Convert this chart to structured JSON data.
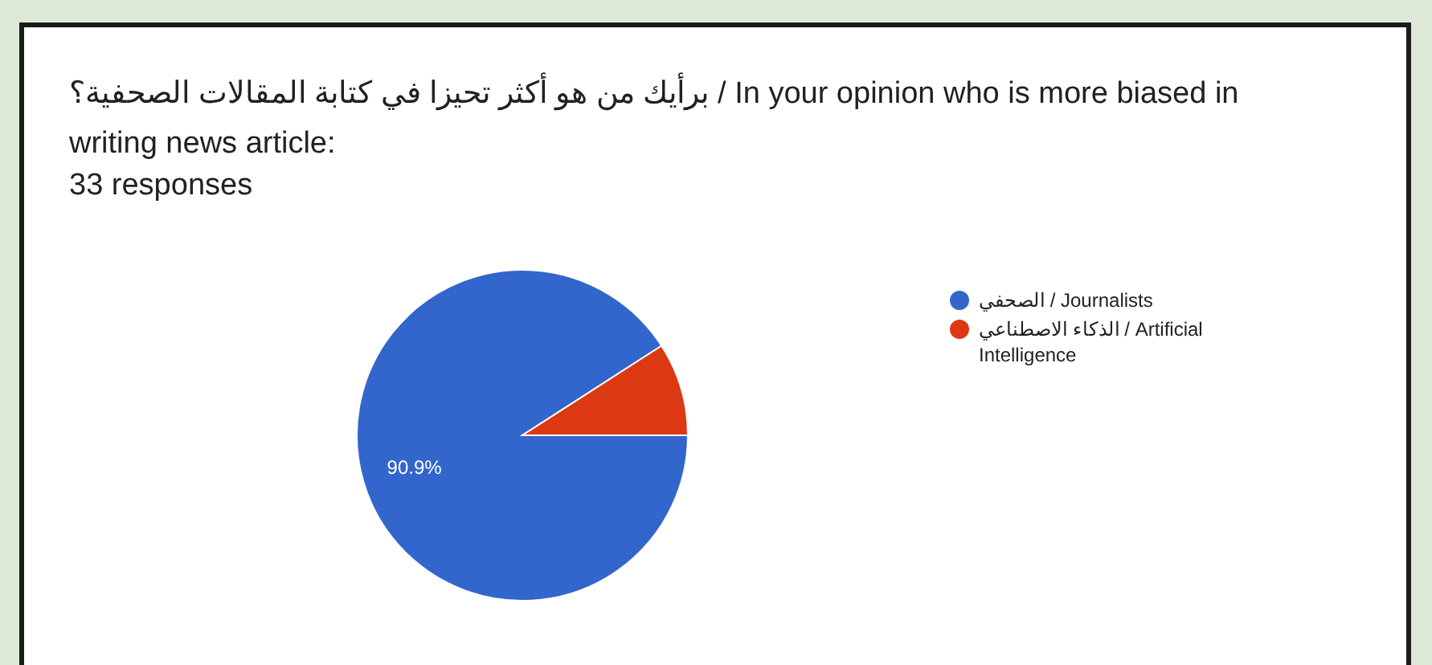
{
  "chart_data": {
    "type": "pie",
    "title": "برأيك من هو أكثر تحيزا في كتابة المقالات الصحفية؟ / In your opinion who is more biased in writing news article:",
    "subtitle": "33 responses",
    "categories": [
      "الصحفي / Journalists",
      "الذكاء الاصطناعي / Artificial Intelligence"
    ],
    "values": [
      90.9,
      9.1
    ],
    "colors": [
      "#3366cc",
      "#dc3912"
    ],
    "value_labels": [
      "90.9%",
      null
    ],
    "legend": "right"
  }
}
